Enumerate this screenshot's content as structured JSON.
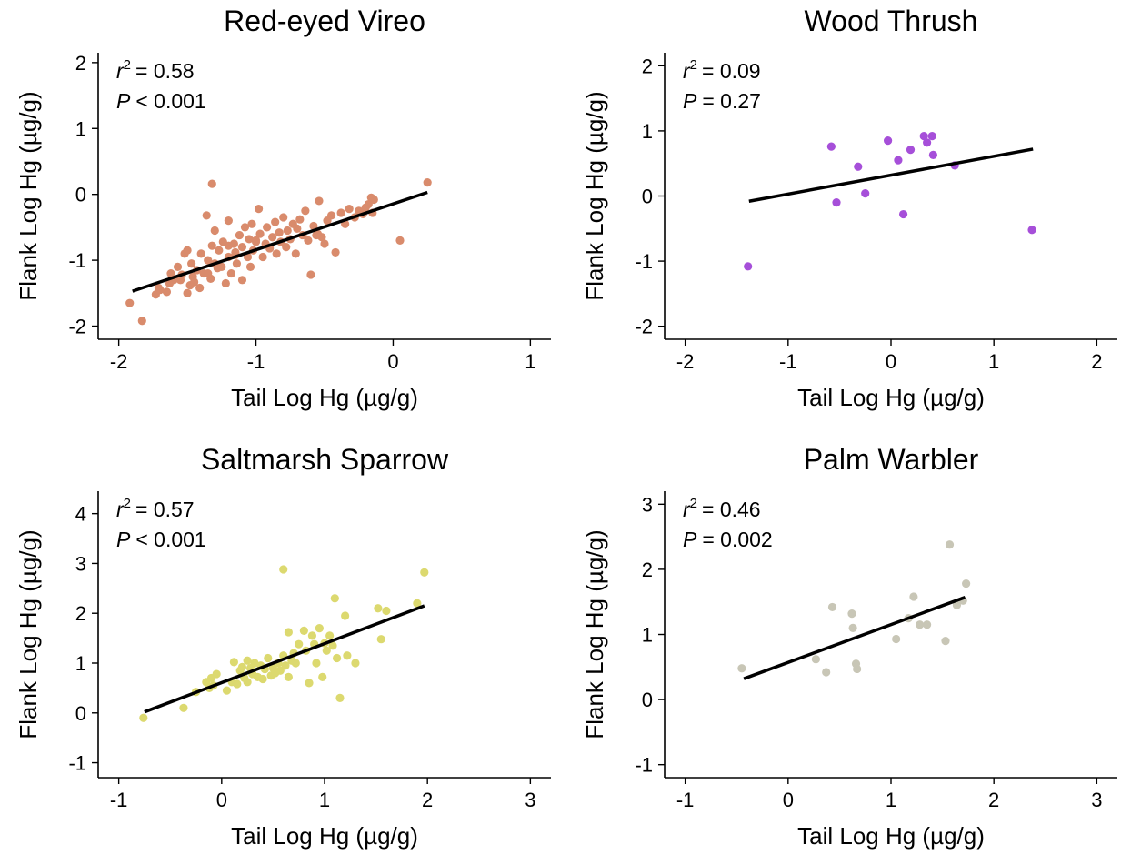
{
  "chart_data": [
    {
      "type": "scatter",
      "title": "Red-eyed Vireo",
      "xlabel": "Tail Log Hg (µg/g)",
      "ylabel": "Flank Log Hg (µg/g)",
      "xlim": [
        -2.15,
        1.15
      ],
      "ylim": [
        -2.2,
        2.15
      ],
      "xticks": [
        -2,
        -1,
        0,
        1
      ],
      "yticks": [
        -2,
        -1,
        0,
        1,
        2
      ],
      "xtick_labels": [
        "-2",
        "-1",
        "0",
        "1"
      ],
      "ytick_labels": [
        "-2",
        "-1",
        "0",
        "1",
        "2"
      ],
      "color": "#d98b6c",
      "r2_text": "= 0.58",
      "p_text": "< 0.001",
      "fit": {
        "x": [
          -1.9,
          0.25
        ],
        "y": [
          -1.47,
          0.03
        ]
      },
      "points": {
        "x": [
          -1.92,
          -1.83,
          -1.73,
          -1.71,
          -1.7,
          -1.65,
          -1.63,
          -1.62,
          -1.6,
          -1.57,
          -1.55,
          -1.54,
          -1.52,
          -1.5,
          -1.5,
          -1.48,
          -1.47,
          -1.46,
          -1.45,
          -1.43,
          -1.41,
          -1.4,
          -1.38,
          -1.36,
          -1.35,
          -1.33,
          -1.32,
          -1.3,
          -1.3,
          -1.28,
          -1.27,
          -1.25,
          -1.24,
          -1.22,
          -1.2,
          -1.2,
          -1.18,
          -1.16,
          -1.15,
          -1.14,
          -1.12,
          -1.1,
          -1.1,
          -1.08,
          -1.06,
          -1.05,
          -1.04,
          -1.03,
          -1.02,
          -1.0,
          -0.98,
          -0.97,
          -0.95,
          -0.93,
          -0.92,
          -0.9,
          -0.88,
          -0.86,
          -0.85,
          -0.83,
          -0.82,
          -0.8,
          -0.78,
          -0.77,
          -0.75,
          -0.73,
          -0.71,
          -0.7,
          -0.68,
          -0.66,
          -0.64,
          -0.62,
          -0.6,
          -0.58,
          -0.56,
          -0.54,
          -0.52,
          -0.5,
          -0.48,
          -0.45,
          -0.42,
          -0.38,
          -0.35,
          -0.32,
          -0.28,
          -0.25,
          -0.22,
          -0.2,
          -0.18,
          -0.16,
          -0.15,
          -0.14,
          0.05,
          0.25,
          -1.32,
          -1.35,
          -1.2,
          -1.15,
          -1.0,
          -0.55
        ],
        "y": [
          -1.65,
          -1.92,
          -1.52,
          -1.42,
          -1.45,
          -1.48,
          -1.35,
          -1.2,
          -1.3,
          -1.1,
          -1.3,
          -1.22,
          -0.9,
          -1.5,
          -0.85,
          -1.38,
          -1.05,
          -1.25,
          -1.33,
          -1.15,
          -1.42,
          -0.9,
          -1.2,
          -0.32,
          -1.0,
          -1.28,
          -0.78,
          -1.05,
          -0.55,
          -1.12,
          -0.85,
          -1.1,
          -0.72,
          -1.35,
          -0.95,
          -0.4,
          -1.2,
          -0.75,
          -0.88,
          -1.05,
          -0.62,
          -1.3,
          -0.8,
          -0.5,
          -0.95,
          -0.68,
          -1.1,
          -0.45,
          -0.85,
          -0.72,
          -0.22,
          -0.6,
          -0.95,
          -0.75,
          -0.5,
          -0.82,
          -0.65,
          -0.42,
          -0.9,
          -0.58,
          -0.72,
          -0.35,
          -0.8,
          -0.55,
          -0.68,
          -0.45,
          -0.9,
          -0.52,
          -0.38,
          -0.62,
          -0.25,
          -0.7,
          -1.22,
          -0.48,
          -0.62,
          -0.1,
          -0.65,
          -0.75,
          -0.4,
          -0.32,
          -0.88,
          -0.28,
          -0.45,
          -0.22,
          -0.35,
          -0.25,
          -0.3,
          -0.2,
          -0.15,
          -0.05,
          -0.28,
          -0.08,
          -0.7,
          0.18,
          0.16,
          -1.2,
          -0.78,
          -0.92,
          -0.7,
          -0.6
        ]
      }
    },
    {
      "type": "scatter",
      "title": "Wood Thrush",
      "xlabel": "Tail Log Hg (µg/g)",
      "ylabel": "Flank Log Hg (µg/g)",
      "xlim": [
        -2.2,
        2.2
      ],
      "ylim": [
        -2.2,
        2.2
      ],
      "xticks": [
        -2,
        -1,
        0,
        1,
        2
      ],
      "yticks": [
        -2,
        -1,
        0,
        1,
        2
      ],
      "xtick_labels": [
        "-2",
        "-1",
        "0",
        "1",
        "2"
      ],
      "ytick_labels": [
        "-2",
        "-1",
        "0",
        "1",
        "2"
      ],
      "color": "#a64fd9",
      "r2_text": "= 0.09",
      "p_text": "= 0.27",
      "fit": {
        "x": [
          -1.38,
          1.38
        ],
        "y": [
          -0.08,
          0.72
        ]
      },
      "points": {
        "x": [
          -1.39,
          -0.58,
          -0.53,
          -0.32,
          -0.25,
          -0.03,
          0.07,
          0.12,
          0.19,
          0.32,
          0.35,
          0.4,
          0.41,
          0.62,
          1.37
        ],
        "y": [
          -1.08,
          0.76,
          -0.1,
          0.45,
          0.04,
          0.85,
          0.55,
          -0.28,
          0.71,
          0.92,
          0.82,
          0.92,
          0.63,
          0.47,
          -0.52
        ]
      }
    },
    {
      "type": "scatter",
      "title": "Saltmarsh Sparrow",
      "xlabel": "Tail Log Hg (µg/g)",
      "ylabel": "Flank Log Hg (µg/g)",
      "xlim": [
        -1.2,
        3.2
      ],
      "ylim": [
        -1.3,
        4.45
      ],
      "xticks": [
        -1,
        0,
        1,
        2,
        3
      ],
      "yticks": [
        -1,
        0,
        1,
        2,
        3,
        4
      ],
      "xtick_labels": [
        "-1",
        "0",
        "1",
        "2",
        "3"
      ],
      "ytick_labels": [
        "-1",
        "0",
        "1",
        "2",
        "3",
        "4"
      ],
      "color": "#dcd96f",
      "r2_text": "= 0.57",
      "p_text": "< 0.001",
      "fit": {
        "x": [
          -0.75,
          1.97
        ],
        "y": [
          0.02,
          2.15
        ]
      },
      "points": {
        "x": [
          -0.76,
          -0.37,
          -0.25,
          -0.15,
          -0.12,
          -0.1,
          -0.08,
          -0.05,
          0.05,
          0.1,
          0.12,
          0.15,
          0.18,
          0.2,
          0.22,
          0.25,
          0.25,
          0.28,
          0.3,
          0.32,
          0.35,
          0.38,
          0.4,
          0.42,
          0.45,
          0.48,
          0.5,
          0.52,
          0.55,
          0.57,
          0.6,
          0.62,
          0.65,
          0.65,
          0.68,
          0.7,
          0.72,
          0.75,
          0.8,
          0.82,
          0.85,
          0.88,
          0.9,
          0.92,
          0.95,
          0.98,
          1.0,
          1.02,
          1.05,
          1.08,
          1.1,
          1.12,
          1.15,
          1.2,
          1.22,
          1.3,
          1.52,
          1.55,
          1.6,
          1.9,
          1.97,
          0.6
        ],
        "y": [
          -0.1,
          0.1,
          0.42,
          0.62,
          0.5,
          0.7,
          0.55,
          0.78,
          0.45,
          0.62,
          1.02,
          0.58,
          0.85,
          0.92,
          0.7,
          1.05,
          0.62,
          0.9,
          0.78,
          1.0,
          0.72,
          0.95,
          0.68,
          0.88,
          1.1,
          0.75,
          0.9,
          0.8,
          1.0,
          0.85,
          1.15,
          0.95,
          1.62,
          0.72,
          1.05,
          1.2,
          1.0,
          1.38,
          1.65,
          1.25,
          0.6,
          1.55,
          1.38,
          1.0,
          1.7,
          0.72,
          1.4,
          1.25,
          1.55,
          1.35,
          2.3,
          1.1,
          0.3,
          1.95,
          1.15,
          1.0,
          2.1,
          1.48,
          2.05,
          2.2,
          2.82,
          2.88
        ]
      }
    },
    {
      "type": "scatter",
      "title": "Palm Warbler",
      "xlabel": "Tail Log Hg (µg/g)",
      "ylabel": "Flank Log Hg (µg/g)",
      "xlim": [
        -1.2,
        3.2
      ],
      "ylim": [
        -1.2,
        3.2
      ],
      "xticks": [
        -1,
        0,
        1,
        2,
        3
      ],
      "yticks": [
        -1,
        0,
        1,
        2,
        3
      ],
      "xtick_labels": [
        "-1",
        "0",
        "1",
        "2",
        "3"
      ],
      "ytick_labels": [
        "-1",
        "0",
        "1",
        "2",
        "3"
      ],
      "color": "#c8c6b6",
      "r2_text": "= 0.46",
      "p_text": "= 0.002",
      "fit": {
        "x": [
          -0.43,
          1.72
        ],
        "y": [
          0.32,
          1.57
        ]
      },
      "points": {
        "x": [
          -0.45,
          0.27,
          0.37,
          0.43,
          0.62,
          0.63,
          0.66,
          0.67,
          1.05,
          1.17,
          1.22,
          1.28,
          1.35,
          1.53,
          1.57,
          1.64,
          1.7,
          1.73
        ],
        "y": [
          0.48,
          0.62,
          0.42,
          1.42,
          1.32,
          1.1,
          0.55,
          0.47,
          0.93,
          1.25,
          1.58,
          1.15,
          1.15,
          0.9,
          2.38,
          1.45,
          1.52,
          1.78
        ]
      }
    }
  ]
}
